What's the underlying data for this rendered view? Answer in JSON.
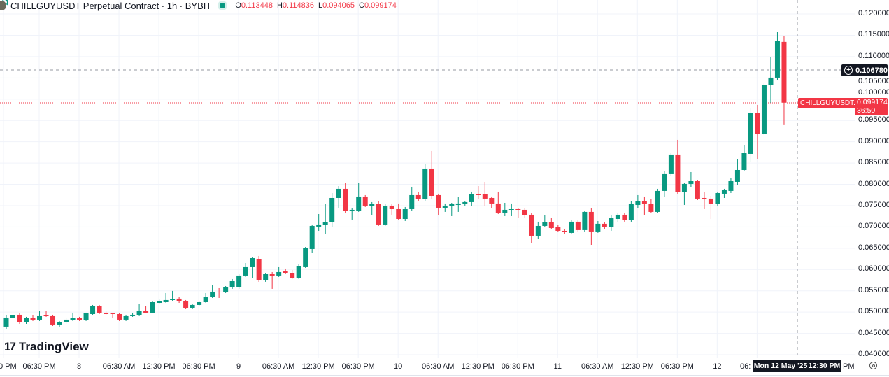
{
  "header": {
    "title": "CHILLGUYUSDT Perpetual Contract · 1h · BYBIT",
    "status_color": "#089981",
    "ohlc": {
      "o_label": "O",
      "o": "0.113448",
      "h_label": "H",
      "h": "0.114836",
      "l_label": "L",
      "l": "0.094065",
      "c_label": "C",
      "c": "0.099174"
    }
  },
  "logo": {
    "text": "TradingView"
  },
  "crosshair": {
    "price": "0.106780",
    "time_day": "Mon 12 May '25",
    "time_clock": "12:30 PM",
    "plus_icon": "plus-circle-icon"
  },
  "current_price": {
    "symbol": "CHILLGUYUSDT.P",
    "value": "0.099174",
    "countdown": "36:50",
    "color": "#f23645"
  },
  "settings_icon": "gear-icon",
  "chart_data": {
    "type": "candlestick",
    "timeframe": "1h",
    "up_color": "#089981",
    "down_color": "#f23645",
    "grid": true,
    "ylim": [
      0.04,
      0.12
    ],
    "y_ticks": [
      "0.120000",
      "0.115000",
      "0.110000",
      "0.105000",
      "0.100000",
      "0.095000",
      "0.090000",
      "0.085000",
      "0.080000",
      "0.075000",
      "0.070000",
      "0.065000",
      "0.060000",
      "0.055000",
      "0.050000",
      "0.045000",
      "0.040000"
    ],
    "x_ticks": [
      "0 PM",
      "06:30 PM",
      "8",
      "06:30 AM",
      "12:30 PM",
      "06:30 PM",
      "9",
      "06:30 AM",
      "12:30 PM",
      "06:30 PM",
      "10",
      "06:30 AM",
      "12:30 PM",
      "06:30 PM",
      "11",
      "06:30 AM",
      "12:30 PM",
      "06:30 PM",
      "12",
      "06:",
      "PM"
    ],
    "ohlc": [
      [
        0.04658,
        0.04937,
        0.04608,
        0.04871
      ],
      [
        0.04855,
        0.04986,
        0.04822,
        0.0492
      ],
      [
        0.04937,
        0.0497,
        0.04723,
        0.04756
      ],
      [
        0.04756,
        0.04888,
        0.04723,
        0.04855
      ],
      [
        0.04855,
        0.0492,
        0.04789,
        0.04822
      ],
      [
        0.04822,
        0.05019,
        0.04789,
        0.04904
      ],
      [
        0.0492,
        0.05035,
        0.04888,
        0.04904
      ],
      [
        0.04904,
        0.04937,
        0.04674,
        0.04707
      ],
      [
        0.04707,
        0.04789,
        0.04658,
        0.04756
      ],
      [
        0.04756,
        0.04855,
        0.04723,
        0.04822
      ],
      [
        0.04805,
        0.04986,
        0.04789,
        0.04855
      ],
      [
        0.04855,
        0.04888,
        0.04789,
        0.04805
      ],
      [
        0.04805,
        0.04986,
        0.04789,
        0.0497
      ],
      [
        0.04953,
        0.05167,
        0.04937,
        0.0515
      ],
      [
        0.05134,
        0.05167,
        0.04953,
        0.04986
      ],
      [
        0.04986,
        0.05019,
        0.04937,
        0.04953
      ],
      [
        0.0497,
        0.04986,
        0.04871,
        0.04953
      ],
      [
        0.04953,
        0.04986,
        0.04789,
        0.04822
      ],
      [
        0.04822,
        0.04937,
        0.04789,
        0.04904
      ],
      [
        0.04904,
        0.04986,
        0.04888,
        0.04937
      ],
      [
        0.0492,
        0.05199,
        0.04904,
        0.05035
      ],
      [
        0.05035,
        0.0515,
        0.0497,
        0.04986
      ],
      [
        0.04986,
        0.05265,
        0.0497,
        0.05232
      ],
      [
        0.05216,
        0.05298,
        0.05199,
        0.05249
      ],
      [
        0.05232,
        0.05446,
        0.05216,
        0.05282
      ],
      [
        0.05282,
        0.05496,
        0.05265,
        0.05298
      ],
      [
        0.05315,
        0.05348,
        0.05216,
        0.05249
      ],
      [
        0.05249,
        0.05282,
        0.05068,
        0.05101
      ],
      [
        0.05101,
        0.05199,
        0.05068,
        0.05167
      ],
      [
        0.05167,
        0.05265,
        0.0515,
        0.05232
      ],
      [
        0.05232,
        0.05446,
        0.05216,
        0.05348
      ],
      [
        0.05348,
        0.05627,
        0.05331,
        0.05479
      ],
      [
        0.05479,
        0.05561,
        0.05331,
        0.05463
      ],
      [
        0.05463,
        0.0561,
        0.05446,
        0.05577
      ],
      [
        0.05577,
        0.05775,
        0.05545,
        0.05725
      ],
      [
        0.05577,
        0.05889,
        0.05545,
        0.05857
      ],
      [
        0.05857,
        0.06152,
        0.05824,
        0.06054
      ],
      [
        0.06054,
        0.06299,
        0.05807,
        0.06267
      ],
      [
        0.06234,
        0.06317,
        0.05709,
        0.05742
      ],
      [
        0.05742,
        0.05922,
        0.05709,
        0.05889
      ],
      [
        0.05889,
        0.05939,
        0.05545,
        0.05857
      ],
      [
        0.05857,
        0.06054,
        0.05824,
        0.05939
      ],
      [
        0.05955,
        0.06021,
        0.05889,
        0.05922
      ],
      [
        0.05922,
        0.05988,
        0.05775,
        0.05807
      ],
      [
        0.05807,
        0.0612,
        0.05775,
        0.0607
      ],
      [
        0.06054,
        0.0653,
        0.06037,
        0.06497
      ],
      [
        0.06481,
        0.07056,
        0.06382,
        0.07023
      ],
      [
        0.07007,
        0.07302,
        0.06908,
        0.07056
      ],
      [
        0.0704,
        0.07532,
        0.06842,
        0.07105
      ],
      [
        0.07105,
        0.07795,
        0.0699,
        0.0768
      ],
      [
        0.0768,
        0.07959,
        0.07434,
        0.07894
      ],
      [
        0.07894,
        0.08041,
        0.07319,
        0.07368
      ],
      [
        0.07368,
        0.0745,
        0.07171,
        0.07401
      ],
      [
        0.07384,
        0.08025,
        0.07352,
        0.07713
      ],
      [
        0.07713,
        0.07746,
        0.07467,
        0.07499
      ],
      [
        0.07499,
        0.07582,
        0.07269,
        0.07532
      ],
      [
        0.07532,
        0.07598,
        0.07023,
        0.07056
      ],
      [
        0.07056,
        0.07532,
        0.07023,
        0.07499
      ],
      [
        0.07499,
        0.07532,
        0.07286,
        0.07417
      ],
      [
        0.07417,
        0.07549,
        0.07155,
        0.07187
      ],
      [
        0.07187,
        0.07467,
        0.07138,
        0.07417
      ],
      [
        0.07417,
        0.07943,
        0.07384,
        0.07746
      ],
      [
        0.07746,
        0.07828,
        0.07614,
        0.07647
      ],
      [
        0.07647,
        0.08485,
        0.07598,
        0.0837
      ],
      [
        0.0837,
        0.08781,
        0.07647,
        0.07729
      ],
      [
        0.07746,
        0.07779,
        0.07269,
        0.0745
      ],
      [
        0.0745,
        0.07549,
        0.07352,
        0.07499
      ],
      [
        0.07499,
        0.07565,
        0.07253,
        0.07532
      ],
      [
        0.07516,
        0.07697,
        0.07352,
        0.07549
      ],
      [
        0.07532,
        0.07614,
        0.07499,
        0.07582
      ],
      [
        0.07582,
        0.07828,
        0.07483,
        0.07762
      ],
      [
        0.07762,
        0.07959,
        0.07664,
        0.07746
      ],
      [
        0.07762,
        0.08058,
        0.07499,
        0.07664
      ],
      [
        0.0768,
        0.07713,
        0.0745,
        0.07549
      ],
      [
        0.07549,
        0.07828,
        0.07302,
        0.07335
      ],
      [
        0.07335,
        0.07565,
        0.07253,
        0.07401
      ],
      [
        0.07401,
        0.07549,
        0.07253,
        0.07417
      ],
      [
        0.07417,
        0.0745,
        0.0722,
        0.07401
      ],
      [
        0.07401,
        0.07434,
        0.0722,
        0.07269
      ],
      [
        0.07286,
        0.07319,
        0.06612,
        0.06793
      ],
      [
        0.06793,
        0.07122,
        0.06727,
        0.07023
      ],
      [
        0.07023,
        0.07269,
        0.0699,
        0.07105
      ],
      [
        0.07105,
        0.07204,
        0.06941,
        0.06974
      ],
      [
        0.0699,
        0.0704,
        0.06875,
        0.06908
      ],
      [
        0.06908,
        0.06957,
        0.06842,
        0.06875
      ],
      [
        0.06859,
        0.07155,
        0.06826,
        0.07122
      ],
      [
        0.07122,
        0.07155,
        0.06892,
        0.06925
      ],
      [
        0.06925,
        0.07384,
        0.06875,
        0.07352
      ],
      [
        0.07352,
        0.07434,
        0.06579,
        0.06892
      ],
      [
        0.06892,
        0.07138,
        0.06859,
        0.07073
      ],
      [
        0.07073,
        0.07105,
        0.06957,
        0.0699
      ],
      [
        0.0699,
        0.07286,
        0.06908,
        0.07204
      ],
      [
        0.07187,
        0.07319,
        0.07105,
        0.07286
      ],
      [
        0.07286,
        0.07335,
        0.07122,
        0.07155
      ],
      [
        0.07155,
        0.07598,
        0.07122,
        0.07532
      ],
      [
        0.07516,
        0.07746,
        0.0745,
        0.07614
      ],
      [
        0.07614,
        0.07713,
        0.07286,
        0.07532
      ],
      [
        0.07532,
        0.07647,
        0.07319,
        0.07352
      ],
      [
        0.07352,
        0.07894,
        0.07319,
        0.07845
      ],
      [
        0.07845,
        0.08319,
        0.07713,
        0.08239
      ],
      [
        0.08239,
        0.08731,
        0.08189,
        0.08699
      ],
      [
        0.08699,
        0.09044,
        0.07779,
        0.07812
      ],
      [
        0.07812,
        0.08041,
        0.07516,
        0.08009
      ],
      [
        0.08009,
        0.08288,
        0.07927,
        0.08074
      ],
      [
        0.08074,
        0.08107,
        0.07631,
        0.07664
      ],
      [
        0.0768,
        0.07812,
        0.07417,
        0.07664
      ],
      [
        0.07664,
        0.07729,
        0.07187,
        0.07532
      ],
      [
        0.07532,
        0.07828,
        0.07499,
        0.07795
      ],
      [
        0.07779,
        0.07894,
        0.0768,
        0.07861
      ],
      [
        0.07845,
        0.08156,
        0.07795,
        0.08074
      ],
      [
        0.08058,
        0.08583,
        0.07992,
        0.08337
      ],
      [
        0.08337,
        0.08912,
        0.08304,
        0.08731
      ],
      [
        0.08715,
        0.09782,
        0.08518,
        0.09684
      ],
      [
        0.09684,
        0.09865,
        0.086,
        0.09191
      ],
      [
        0.09191,
        0.10374,
        0.09158,
        0.10341
      ],
      [
        0.10325,
        0.10982,
        0.09914,
        0.10506
      ],
      [
        0.10506,
        0.11573,
        0.1044,
        0.1136
      ],
      [
        0.113448,
        0.114836,
        0.094065,
        0.099174
      ]
    ]
  }
}
